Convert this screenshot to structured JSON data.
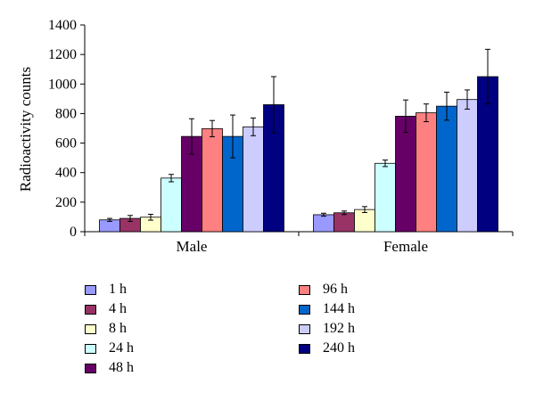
{
  "chart_data": {
    "type": "bar",
    "title": "",
    "xlabel": "",
    "ylabel": "Radioactivity counts",
    "ylim": [
      0,
      1400
    ],
    "yticks": [
      0,
      200,
      400,
      600,
      800,
      1000,
      1200,
      1400
    ],
    "categories": [
      "Male",
      "Female"
    ],
    "grid": false,
    "error_bars": true,
    "legend_position": "bottom",
    "series": [
      {
        "name": "1 h",
        "color": "#9999ff",
        "values": [
          80,
          115
        ],
        "errors": [
          10,
          10
        ]
      },
      {
        "name": "4 h",
        "color": "#993366",
        "values": [
          90,
          128
        ],
        "errors": [
          20,
          12
        ]
      },
      {
        "name": "8 h",
        "color": "#ffffcc",
        "values": [
          98,
          150
        ],
        "errors": [
          20,
          20
        ]
      },
      {
        "name": "24 h",
        "color": "#ccffff",
        "values": [
          363,
          463
        ],
        "errors": [
          25,
          22
        ]
      },
      {
        "name": "48 h",
        "color": "#660066",
        "values": [
          645,
          782
        ],
        "errors": [
          120,
          110
        ]
      },
      {
        "name": "96 h",
        "color": "#ff8080",
        "values": [
          698,
          805
        ],
        "errors": [
          55,
          60
        ]
      },
      {
        "name": "144 h",
        "color": "#0066cc",
        "values": [
          645,
          850
        ],
        "errors": [
          145,
          95
        ]
      },
      {
        "name": "192 h",
        "color": "#ccccff",
        "values": [
          710,
          895
        ],
        "errors": [
          60,
          65
        ]
      },
      {
        "name": "240 h",
        "color": "#000080",
        "values": [
          860,
          1050
        ],
        "errors": [
          190,
          185
        ]
      }
    ]
  }
}
